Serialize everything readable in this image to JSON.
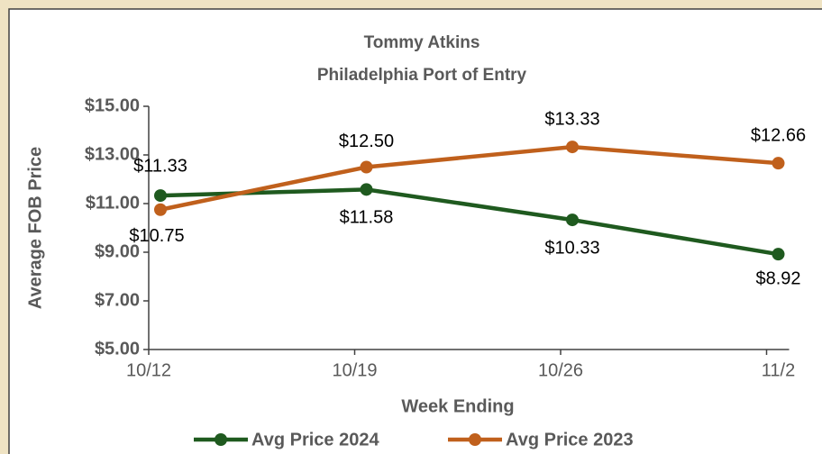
{
  "chart_data": {
    "type": "line",
    "title": "Tommy Atkins",
    "subtitle": "Philadelphia Port of Entry",
    "x_label": "Week Ending",
    "y_label": "Average FOB Price",
    "categories": [
      "10/12",
      "10/19",
      "10/26",
      "11/2"
    ],
    "series": [
      {
        "name": "Avg Price 2024",
        "color": "#1f5a1f",
        "values": [
          11.33,
          11.58,
          10.33,
          8.92
        ],
        "value_labels": [
          "$11.33",
          "$11.58",
          "$10.33",
          "$8.92"
        ]
      },
      {
        "name": "Avg Price 2023",
        "color": "#c0601c",
        "values": [
          10.75,
          12.5,
          13.33,
          12.66
        ],
        "value_labels": [
          "$10.75",
          "$12.50",
          "$13.33",
          "$12.66"
        ]
      }
    ],
    "ylim": [
      5,
      15
    ],
    "yticks": [
      {
        "value": 5,
        "label": "$5.00"
      },
      {
        "value": 7,
        "label": "$7.00"
      },
      {
        "value": 9,
        "label": "$9.00"
      },
      {
        "value": 11,
        "label": "$11.00"
      },
      {
        "value": 13,
        "label": "$13.00"
      },
      {
        "value": 15,
        "label": "$15.00"
      }
    ],
    "legend": "bottom"
  }
}
